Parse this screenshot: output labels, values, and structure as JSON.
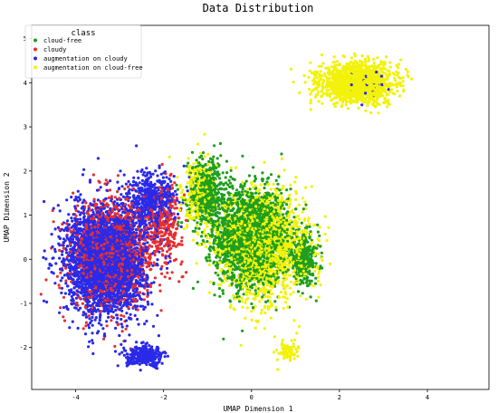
{
  "chart_data": {
    "type": "scatter",
    "title": "Data Distribution",
    "xlabel": "UMAP Dimension 1",
    "ylabel": "UMAP Dimension 2",
    "xlim": [
      -5.0,
      5.4
    ],
    "ylim": [
      -2.95,
      5.3
    ],
    "xticks": [
      -4,
      -2,
      0,
      2,
      4
    ],
    "yticks": [
      -2,
      -1,
      0,
      1,
      2,
      3,
      4,
      5
    ],
    "grid": false,
    "legend": {
      "title": "class",
      "placement": "top-left"
    },
    "series": [
      {
        "name": "cloud-free",
        "color": "#1e9e1e",
        "clusters": [
          {
            "center": [
              0.0,
              0.5
            ],
            "spread": [
              0.75,
              1.0
            ],
            "count": 2100
          },
          {
            "center": [
              -1.0,
              1.5
            ],
            "spread": [
              0.4,
              0.7
            ],
            "count": 500
          },
          {
            "center": [
              1.2,
              0.0
            ],
            "spread": [
              0.3,
              0.5
            ],
            "count": 300
          }
        ]
      },
      {
        "name": "cloudy",
        "color": "#e83030",
        "clusters": [
          {
            "center": [
              -3.2,
              0.1
            ],
            "spread": [
              0.8,
              1.1
            ],
            "count": 1300
          },
          {
            "center": [
              -2.0,
              0.8
            ],
            "spread": [
              0.4,
              0.8
            ],
            "count": 300
          }
        ]
      },
      {
        "name": "augmentation on cloudy",
        "color": "#2a2ae8",
        "clusters": [
          {
            "center": [
              -3.3,
              0.0
            ],
            "spread": [
              0.8,
              1.1
            ],
            "count": 3300
          },
          {
            "center": [
              -2.3,
              1.3
            ],
            "spread": [
              0.5,
              0.6
            ],
            "count": 500
          },
          {
            "center": [
              -2.4,
              -2.2
            ],
            "spread": [
              0.4,
              0.2
            ],
            "count": 300
          },
          {
            "center": [
              2.6,
              4.0
            ],
            "spread": [
              0.5,
              0.3
            ],
            "count": 40
          }
        ]
      },
      {
        "name": "augmentation on cloud-free",
        "color": "#f2f20a",
        "clusters": [
          {
            "center": [
              0.3,
              0.3
            ],
            "spread": [
              0.9,
              1.1
            ],
            "count": 1700
          },
          {
            "center": [
              2.4,
              4.0
            ],
            "spread": [
              0.75,
              0.4
            ],
            "count": 1500
          },
          {
            "center": [
              -1.2,
              1.4
            ],
            "spread": [
              0.35,
              0.8
            ],
            "count": 300
          },
          {
            "center": [
              0.8,
              -2.1
            ],
            "spread": [
              0.2,
              0.25
            ],
            "count": 80
          }
        ]
      }
    ]
  }
}
